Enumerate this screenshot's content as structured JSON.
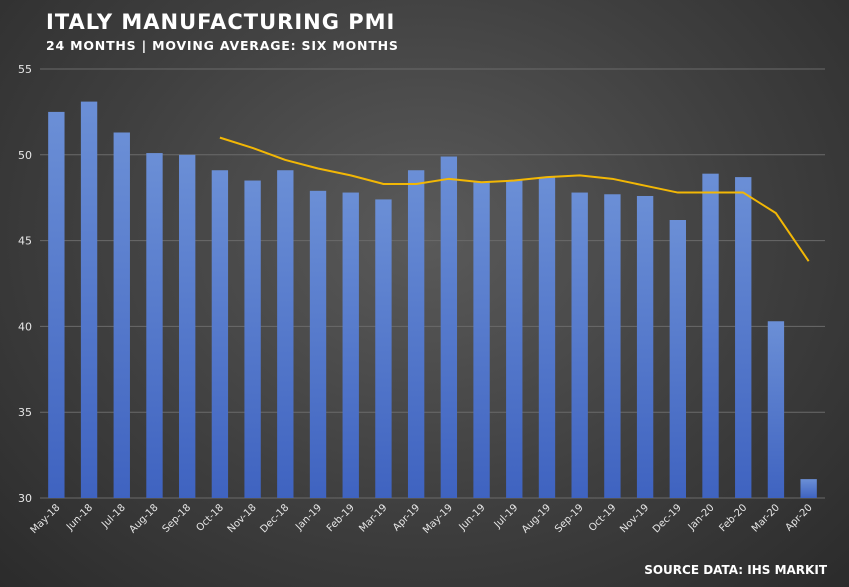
{
  "title": "ITALY MANUFACTURING PMI",
  "subtitle": "24 MONTHS | MOVING AVERAGE: SIX MONTHS",
  "source": "SOURCE DATA: IHS MARKIT",
  "colors": {
    "bar_top": "#6b8fd6",
    "bar_bottom": "#3f63c0",
    "line": "#f2b705",
    "grid": "#6a6a6a"
  },
  "chart_data": {
    "type": "bar",
    "title": "ITALY MANUFACTURING PMI",
    "subtitle": "24 MONTHS | MOVING AVERAGE: SIX MONTHS",
    "xlabel": "",
    "ylabel": "",
    "ylim": [
      30,
      55
    ],
    "yticks": [
      30,
      35,
      40,
      45,
      50,
      55
    ],
    "grid": true,
    "categories": [
      "May-18",
      "Jun-18",
      "Jul-18",
      "Aug-18",
      "Sep-18",
      "Oct-18",
      "Nov-18",
      "Dec-18",
      "Jan-19",
      "Feb-19",
      "Mar-19",
      "Apr-19",
      "May-19",
      "Jun-19",
      "Jul-19",
      "Aug-19",
      "Sep-19",
      "Oct-19",
      "Nov-19",
      "Dec-19",
      "Jan-20",
      "Feb-20",
      "Mar-20",
      "Apr-20"
    ],
    "series": [
      {
        "type": "bar",
        "values": [
          52.5,
          53.1,
          51.3,
          50.1,
          50.0,
          49.1,
          48.5,
          49.1,
          47.9,
          47.8,
          47.4,
          49.1,
          49.9,
          48.4,
          48.5,
          48.7,
          47.8,
          47.7,
          47.6,
          46.2,
          48.9,
          48.7,
          40.3,
          31.1
        ]
      },
      {
        "type": "line",
        "values": [
          null,
          null,
          null,
          null,
          null,
          51.0,
          50.4,
          49.7,
          49.2,
          48.8,
          48.3,
          48.3,
          48.6,
          48.4,
          48.5,
          48.7,
          48.8,
          48.6,
          48.2,
          47.8,
          47.8,
          47.8,
          46.6,
          43.8
        ]
      }
    ]
  }
}
